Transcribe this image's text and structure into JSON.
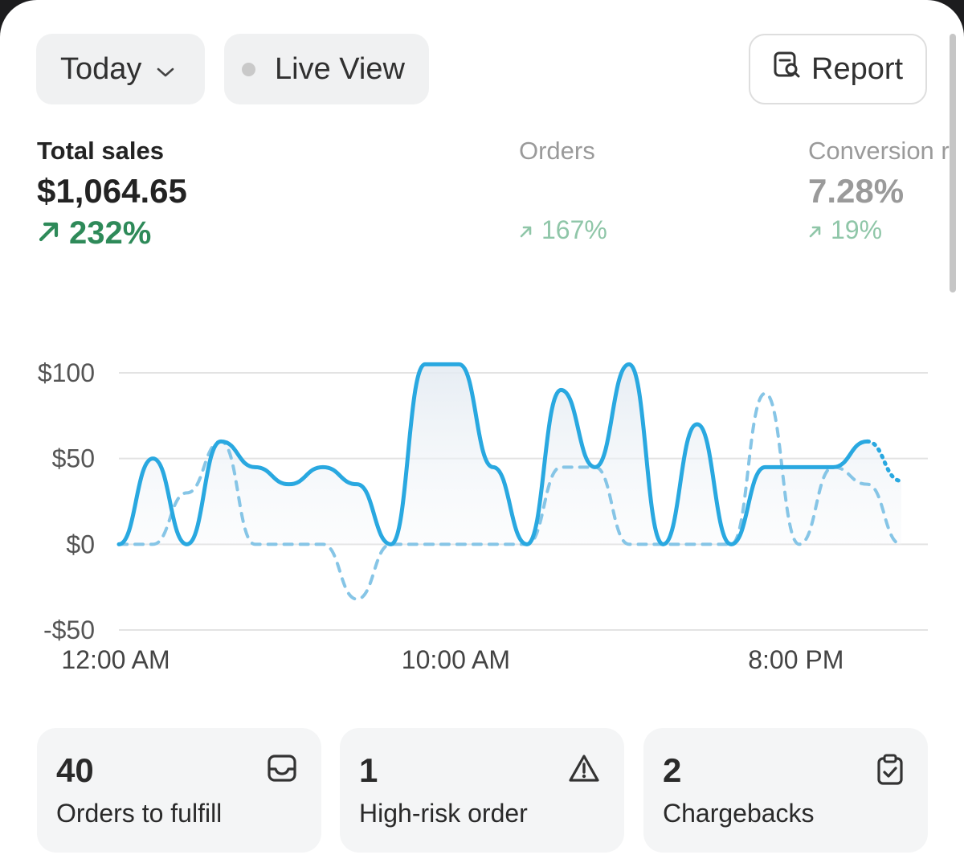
{
  "toolbar": {
    "date_label": "Today",
    "live_label": "Live View",
    "report_label": "Report"
  },
  "metrics": {
    "sales": {
      "label": "Total sales",
      "value": "$1,064.65",
      "delta": "232%"
    },
    "orders": {
      "label": "Orders",
      "delta": "167%"
    },
    "conversion": {
      "label": "Conversion r",
      "value": "7.28%",
      "delta": "19%"
    }
  },
  "colors": {
    "accent": "#29a8e0",
    "positive": "#2e8a59",
    "positive_muted": "#8fc6a8"
  },
  "chart_data": {
    "type": "line",
    "x_tick_labels": [
      "12:00 AM",
      "10:00 AM",
      "8:00 PM"
    ],
    "y_tick_labels": [
      "$100",
      "$50",
      "$0",
      "-$50"
    ],
    "y_ticks": [
      100,
      50,
      0,
      -50
    ],
    "ylim": [
      -50,
      100
    ],
    "xlim": [
      0,
      23.5
    ],
    "grid": true,
    "series": [
      {
        "style": "solid",
        "x": [
          0,
          1,
          2,
          3,
          4,
          5,
          6,
          7,
          8,
          9,
          10,
          11,
          12,
          13,
          14,
          15,
          16,
          17,
          18,
          19,
          20,
          21,
          22
        ],
        "values": [
          0,
          50,
          0,
          60,
          45,
          35,
          45,
          35,
          0,
          105,
          105,
          45,
          0,
          90,
          45,
          105,
          0,
          70,
          0,
          45,
          45,
          45,
          60
        ],
        "extension": {
          "x": [
            22,
            23
          ],
          "values": [
            60,
            37
          ],
          "style": "dotted"
        }
      },
      {
        "style": "dashed",
        "x": [
          0,
          1,
          2,
          3,
          4,
          5,
          6,
          7,
          8,
          9,
          10,
          11,
          12,
          13,
          14,
          15,
          16,
          17,
          18,
          19,
          20,
          21,
          22,
          23
        ],
        "values": [
          0,
          0,
          30,
          60,
          0,
          0,
          0,
          -32,
          0,
          0,
          0,
          0,
          0,
          45,
          45,
          0,
          0,
          0,
          0,
          88,
          0,
          45,
          35,
          0
        ]
      }
    ]
  },
  "cards": [
    {
      "value": "40",
      "label": "Orders to fulfill",
      "icon": "inbox-icon"
    },
    {
      "value": "1",
      "label": "High-risk order",
      "icon": "warning-icon"
    },
    {
      "value": "2",
      "label": "Chargebacks",
      "icon": "clipboard-check-icon"
    }
  ]
}
